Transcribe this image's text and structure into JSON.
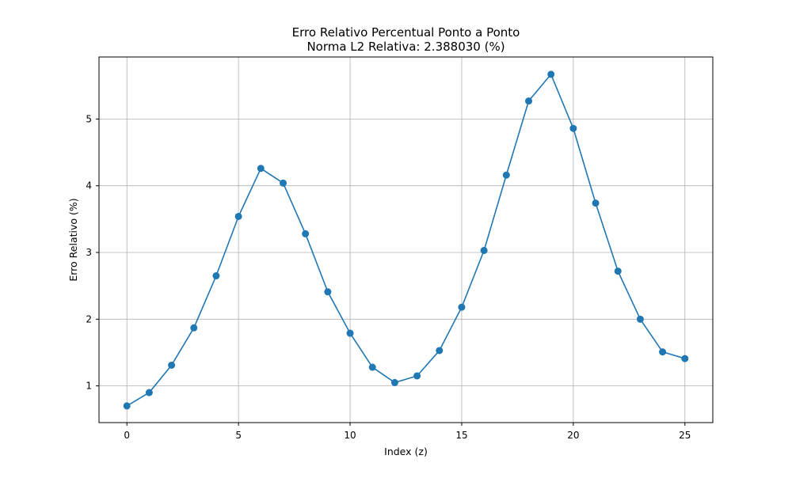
{
  "chart_data": {
    "type": "line",
    "title": "Erro Relativo Percentual Ponto a Ponto",
    "subtitle": "Norma L2 Relativa: 2.388030 (%)",
    "xlabel": "Index (z)",
    "ylabel": "Erro Relativo (%)",
    "xlim": [
      -1.25,
      26.25
    ],
    "ylim": [
      0.45,
      5.93
    ],
    "x_ticks": [
      0,
      5,
      10,
      15,
      20,
      25
    ],
    "x_tick_labels": [
      "0",
      "5",
      "10",
      "15",
      "20",
      "25"
    ],
    "y_ticks": [
      1,
      2,
      3,
      4,
      5
    ],
    "y_tick_labels": [
      "1",
      "2",
      "3",
      "4",
      "5"
    ],
    "grid": true,
    "marker": "circle",
    "colors": {
      "series": "#1f77b4",
      "grid": "#b0b0b0",
      "axes": "#000000"
    },
    "series": [
      {
        "x": [
          0,
          1,
          2,
          3,
          4,
          5,
          6,
          7,
          8,
          9,
          10,
          11,
          12,
          13,
          14,
          15,
          16,
          17,
          18,
          19,
          20,
          21,
          22,
          23,
          24,
          25
        ],
        "values": [
          0.7,
          0.9,
          1.31,
          1.87,
          2.65,
          3.54,
          4.26,
          4.04,
          3.28,
          2.41,
          1.79,
          1.28,
          1.05,
          1.15,
          1.53,
          2.18,
          3.03,
          4.16,
          5.27,
          5.67,
          4.86,
          3.74,
          2.72,
          2.0,
          1.51,
          1.41
        ]
      }
    ]
  }
}
